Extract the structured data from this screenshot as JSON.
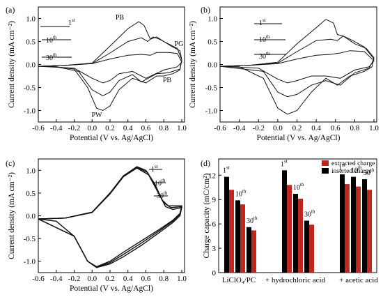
{
  "chart_data": [
    {
      "panel": "(a)",
      "type": "line",
      "xlabel": "Potential (V vs. Ag/AgCl)",
      "ylabel": "Current density (mA cm⁻²)",
      "xlim": [
        -0.6,
        1.0
      ],
      "ylim": [
        -1.25,
        1.25
      ],
      "xticks": [
        "-0.6",
        "-0.4",
        "-0.2",
        "0.0",
        "0.2",
        "0.4",
        "0.6",
        "0.8",
        "1.0"
      ],
      "yticks": [
        "-1.0",
        "-0.5",
        "0.0",
        "0.5",
        "1.0"
      ],
      "annotations": [
        "PB",
        "PG",
        "PB",
        "PW"
      ],
      "cycle_labels": [
        "1",
        "10",
        "30"
      ],
      "series": [
        {
          "name": "1st",
          "values": [
            [
              -0.6,
              -0.04
            ],
            [
              -0.3,
              -0.02
            ],
            [
              0.0,
              0.03
            ],
            [
              0.2,
              0.4
            ],
            [
              0.4,
              0.78
            ],
            [
              0.52,
              0.93
            ],
            [
              0.58,
              0.85
            ],
            [
              0.65,
              0.55
            ],
            [
              0.72,
              0.6
            ],
            [
              0.8,
              0.5
            ],
            [
              0.9,
              0.38
            ],
            [
              0.98,
              0.3
            ],
            [
              1.0,
              0.1
            ],
            [
              0.98,
              -0.12
            ],
            [
              0.9,
              -0.2
            ],
            [
              0.8,
              -0.25
            ],
            [
              0.72,
              -0.25
            ],
            [
              0.6,
              -0.4
            ],
            [
              0.45,
              -0.3
            ],
            [
              0.3,
              -0.55
            ],
            [
              0.2,
              -0.9
            ],
            [
              0.12,
              -1.0
            ],
            [
              0.05,
              -0.95
            ],
            [
              -0.05,
              -0.5
            ],
            [
              -0.2,
              -0.1
            ],
            [
              -0.4,
              -0.05
            ],
            [
              -0.6,
              -0.04
            ]
          ]
        },
        {
          "name": "10th",
          "values": [
            [
              -0.6,
              -0.04
            ],
            [
              -0.3,
              -0.02
            ],
            [
              0.0,
              0.02
            ],
            [
              0.2,
              0.25
            ],
            [
              0.4,
              0.5
            ],
            [
              0.55,
              0.58
            ],
            [
              0.62,
              0.5
            ],
            [
              0.68,
              0.6
            ],
            [
              0.75,
              0.55
            ],
            [
              0.85,
              0.45
            ],
            [
              0.95,
              0.35
            ],
            [
              1.0,
              0.1
            ],
            [
              0.98,
              -0.1
            ],
            [
              0.85,
              -0.18
            ],
            [
              0.72,
              -0.2
            ],
            [
              0.55,
              -0.38
            ],
            [
              0.45,
              -0.22
            ],
            [
              0.3,
              -0.35
            ],
            [
              0.2,
              -0.6
            ],
            [
              0.12,
              -0.68
            ],
            [
              0.0,
              -0.55
            ],
            [
              -0.15,
              -0.15
            ],
            [
              -0.4,
              -0.05
            ],
            [
              -0.6,
              -0.04
            ]
          ]
        },
        {
          "name": "30th",
          "values": [
            [
              -0.6,
              -0.04
            ],
            [
              -0.3,
              -0.02
            ],
            [
              0.0,
              0.02
            ],
            [
              0.2,
              0.12
            ],
            [
              0.4,
              0.2
            ],
            [
              0.55,
              0.22
            ],
            [
              0.65,
              0.2
            ],
            [
              0.72,
              0.26
            ],
            [
              0.85,
              0.26
            ],
            [
              0.95,
              0.24
            ],
            [
              1.0,
              0.05
            ],
            [
              0.95,
              -0.05
            ],
            [
              0.8,
              -0.12
            ],
            [
              0.6,
              -0.3
            ],
            [
              0.45,
              -0.15
            ],
            [
              0.3,
              -0.2
            ],
            [
              0.2,
              -0.35
            ],
            [
              0.12,
              -0.4
            ],
            [
              0.0,
              -0.3
            ],
            [
              -0.2,
              -0.08
            ],
            [
              -0.6,
              -0.04
            ]
          ]
        }
      ]
    },
    {
      "panel": "(b)",
      "type": "line",
      "xlabel": "Potential (V vs. Ag/AgCl)",
      "ylabel": "Current density (mA cm⁻²)",
      "xlim": [
        -0.6,
        1.0
      ],
      "ylim": [
        -1.25,
        1.25
      ],
      "xticks": [
        "-0.6",
        "-0.4",
        "-0.2",
        "0.0",
        "0.2",
        "0.4",
        "0.6",
        "0.8",
        "1.0"
      ],
      "yticks": [
        "-1.0",
        "-0.5",
        "0.0",
        "0.5",
        "1.0"
      ],
      "cycle_labels": [
        "1",
        "10",
        "30"
      ],
      "series": [
        {
          "name": "1st",
          "values": [
            [
              -0.6,
              -0.04
            ],
            [
              -0.3,
              -0.02
            ],
            [
              0.0,
              0.05
            ],
            [
              0.2,
              0.45
            ],
            [
              0.4,
              0.8
            ],
            [
              0.5,
              0.98
            ],
            [
              0.58,
              0.9
            ],
            [
              0.62,
              0.65
            ],
            [
              0.68,
              0.62
            ],
            [
              0.8,
              0.45
            ],
            [
              0.92,
              0.35
            ],
            [
              1.0,
              0.15
            ],
            [
              0.98,
              -0.05
            ],
            [
              0.9,
              -0.15
            ],
            [
              0.75,
              -0.25
            ],
            [
              0.62,
              -0.45
            ],
            [
              0.5,
              -0.3
            ],
            [
              0.35,
              -0.6
            ],
            [
              0.2,
              -1.0
            ],
            [
              0.1,
              -1.08
            ],
            [
              0.0,
              -0.95
            ],
            [
              -0.15,
              -0.3
            ],
            [
              -0.4,
              -0.05
            ],
            [
              -0.6,
              -0.04
            ]
          ]
        },
        {
          "name": "10th",
          "values": [
            [
              -0.6,
              -0.04
            ],
            [
              -0.3,
              -0.02
            ],
            [
              0.0,
              0.03
            ],
            [
              0.2,
              0.28
            ],
            [
              0.4,
              0.52
            ],
            [
              0.55,
              0.55
            ],
            [
              0.62,
              0.52
            ],
            [
              0.68,
              0.62
            ],
            [
              0.78,
              0.52
            ],
            [
              0.9,
              0.38
            ],
            [
              1.0,
              0.12
            ],
            [
              0.95,
              -0.08
            ],
            [
              0.8,
              -0.18
            ],
            [
              0.65,
              -0.45
            ],
            [
              0.5,
              -0.35
            ],
            [
              0.35,
              -0.45
            ],
            [
              0.2,
              -0.65
            ],
            [
              0.1,
              -0.7
            ],
            [
              0.0,
              -0.6
            ],
            [
              -0.15,
              -0.15
            ],
            [
              -0.6,
              -0.04
            ]
          ]
        },
        {
          "name": "30th",
          "values": [
            [
              -0.6,
              -0.04
            ],
            [
              -0.3,
              -0.02
            ],
            [
              0.0,
              0.02
            ],
            [
              0.2,
              0.12
            ],
            [
              0.4,
              0.2
            ],
            [
              0.55,
              0.22
            ],
            [
              0.65,
              0.25
            ],
            [
              0.75,
              0.3
            ],
            [
              0.9,
              0.28
            ],
            [
              1.0,
              0.08
            ],
            [
              0.95,
              -0.05
            ],
            [
              0.8,
              -0.12
            ],
            [
              0.65,
              -0.3
            ],
            [
              0.5,
              -0.25
            ],
            [
              0.35,
              -0.25
            ],
            [
              0.2,
              -0.35
            ],
            [
              0.1,
              -0.4
            ],
            [
              0.0,
              -0.32
            ],
            [
              -0.2,
              -0.08
            ],
            [
              -0.6,
              -0.04
            ]
          ]
        }
      ]
    },
    {
      "panel": "(c)",
      "type": "line",
      "xlabel": "Potential (V vs. Ag/AgCl)",
      "ylabel": "Current density (mA cm⁻²)",
      "xlim": [
        -0.6,
        1.0
      ],
      "ylim": [
        -1.25,
        1.25
      ],
      "xticks": [
        "-0.6",
        "-0.4",
        "-0.2",
        "0.0",
        "0.2",
        "0.4",
        "0.6",
        "0.8",
        "1.0"
      ],
      "yticks": [
        "-1.0",
        "-0.5",
        "0.0",
        "0.5",
        "1.0"
      ],
      "cycle_labels": [
        "1",
        "10",
        "30"
      ],
      "series": [
        {
          "name": "1st",
          "values": [
            [
              -0.6,
              -0.07
            ],
            [
              -0.3,
              -0.05
            ],
            [
              0.0,
              0.08
            ],
            [
              0.2,
              0.5
            ],
            [
              0.35,
              0.88
            ],
            [
              0.5,
              1.08
            ],
            [
              0.6,
              1.0
            ],
            [
              0.7,
              0.7
            ],
            [
              0.78,
              0.35
            ],
            [
              0.85,
              0.22
            ],
            [
              1.0,
              0.22
            ],
            [
              0.98,
              0.05
            ],
            [
              0.9,
              -0.1
            ],
            [
              0.75,
              -0.3
            ],
            [
              0.55,
              -0.55
            ],
            [
              0.35,
              -0.8
            ],
            [
              0.2,
              -1.0
            ],
            [
              0.05,
              -1.12
            ],
            [
              -0.05,
              -1.0
            ],
            [
              -0.2,
              -0.45
            ],
            [
              -0.4,
              -0.12
            ],
            [
              -0.6,
              -0.07
            ]
          ]
        },
        {
          "name": "10th",
          "values": [
            [
              -0.6,
              -0.07
            ],
            [
              -0.3,
              -0.05
            ],
            [
              0.0,
              0.08
            ],
            [
              0.2,
              0.5
            ],
            [
              0.35,
              0.88
            ],
            [
              0.5,
              1.07
            ],
            [
              0.62,
              0.95
            ],
            [
              0.72,
              0.6
            ],
            [
              0.8,
              0.28
            ],
            [
              0.88,
              0.18
            ],
            [
              1.0,
              0.2
            ],
            [
              0.98,
              0.03
            ],
            [
              0.9,
              -0.12
            ],
            [
              0.75,
              -0.33
            ],
            [
              0.55,
              -0.6
            ],
            [
              0.35,
              -0.85
            ],
            [
              0.2,
              -1.03
            ],
            [
              0.05,
              -1.13
            ],
            [
              -0.05,
              -1.0
            ],
            [
              -0.2,
              -0.45
            ],
            [
              -0.6,
              -0.07
            ]
          ]
        },
        {
          "name": "30th",
          "values": [
            [
              -0.6,
              -0.07
            ],
            [
              -0.3,
              -0.05
            ],
            [
              0.0,
              0.07
            ],
            [
              0.2,
              0.48
            ],
            [
              0.35,
              0.86
            ],
            [
              0.5,
              1.05
            ],
            [
              0.63,
              0.9
            ],
            [
              0.74,
              0.5
            ],
            [
              0.82,
              0.2
            ],
            [
              0.9,
              0.14
            ],
            [
              1.0,
              0.18
            ],
            [
              0.98,
              0.0
            ],
            [
              0.9,
              -0.15
            ],
            [
              0.75,
              -0.37
            ],
            [
              0.55,
              -0.65
            ],
            [
              0.35,
              -0.9
            ],
            [
              0.2,
              -1.06
            ],
            [
              0.05,
              -1.14
            ],
            [
              -0.05,
              -1.0
            ],
            [
              -0.2,
              -0.45
            ],
            [
              -0.6,
              -0.07
            ]
          ]
        }
      ]
    },
    {
      "panel": "(d)",
      "type": "bar",
      "ylabel": "Charge capacity (mC/cm²)",
      "ylim": [
        0,
        14
      ],
      "yticks": [
        "0",
        "3",
        "6",
        "9",
        "12"
      ],
      "groups": [
        "LiClO₄/PC",
        "+ hydrochloric acid",
        "+ acetic acid"
      ],
      "cycle_labels": [
        "1",
        "10",
        "30"
      ],
      "legend": [
        "extracted charge",
        "inserted charge"
      ],
      "series": [
        {
          "name": "inserted charge",
          "color": "#000000",
          "values": [
            11.8,
            8.9,
            5.6,
            12.6,
            9.7,
            6.4,
            12.1,
            11.8,
            11.5
          ]
        },
        {
          "name": "extracted charge",
          "color": "#c0251e",
          "values": [
            10.2,
            8.4,
            5.2,
            10.8,
            9.1,
            5.9,
            10.9,
            10.6,
            10.2
          ]
        }
      ]
    }
  ]
}
